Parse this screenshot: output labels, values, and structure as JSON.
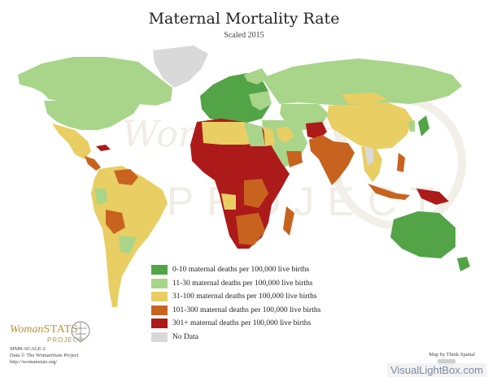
{
  "title": "Maternal Mortality Rate",
  "subtitle": "Scaled 2015",
  "legend": [
    {
      "label": "0-10 maternal deaths per 100,000 live births",
      "color": "#52a447"
    },
    {
      "label": "11-30 maternal deaths per 100,000 live births",
      "color": "#a8d58a"
    },
    {
      "label": "31-100 maternal deaths per 100,000 live births",
      "color": "#e8ce63"
    },
    {
      "label": "101-300 maternal deaths per 100,000 live births",
      "color": "#c8631f"
    },
    {
      "label": "301+ maternal deaths per 100,000 live births",
      "color": "#ad1a1a"
    },
    {
      "label": "No Data",
      "color": "#d9d9d9"
    }
  ],
  "watermark_top": "WomanStats",
  "watermark_bottom": "PROJECT",
  "brand": {
    "prefix": "Woman",
    "suffix": "STATS",
    "project": "PROJECT"
  },
  "map_code": "MMR-SCALE-2",
  "data_credit": "Data © The WomanStats Project",
  "url": "http://womanstats.org/",
  "map_credit": "Map by Think Spatial",
  "watermark_site": "VisualLightBox.com"
}
